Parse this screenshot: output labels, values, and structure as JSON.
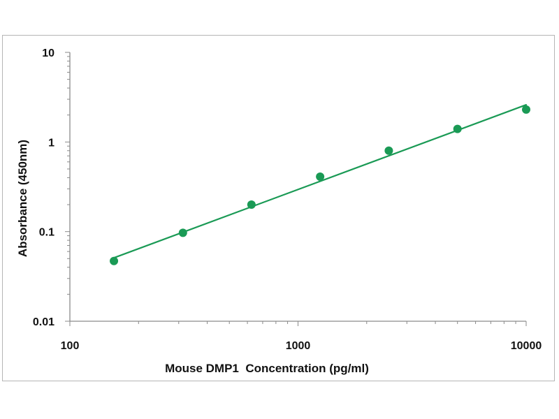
{
  "chart_data": {
    "type": "scatter",
    "title": "",
    "xlabel": "Mouse DMP1  Concentration (pg/ml)",
    "ylabel": "Absorbance (450nm)",
    "x_scale": "log",
    "y_scale": "log",
    "xlim": [
      100,
      10000
    ],
    "ylim": [
      0.01,
      10
    ],
    "x_ticks": [
      {
        "value": 100,
        "label": "100"
      },
      {
        "value": 1000,
        "label": "1000"
      },
      {
        "value": 10000,
        "label": "10000"
      }
    ],
    "y_ticks": [
      {
        "value": 10,
        "label": "10"
      },
      {
        "value": 1,
        "label": "1"
      },
      {
        "value": 0.1,
        "label": "0.1"
      },
      {
        "value": 0.01,
        "label": "0.01"
      }
    ],
    "grid": false,
    "legend": "none",
    "series": [
      {
        "points": [
          {
            "x": 156,
            "y": 0.047
          },
          {
            "x": 313,
            "y": 0.097
          },
          {
            "x": 625,
            "y": 0.2
          },
          {
            "x": 1250,
            "y": 0.41
          },
          {
            "x": 2500,
            "y": 0.8
          },
          {
            "x": 5000,
            "y": 1.4
          },
          {
            "x": 10000,
            "y": 2.3
          }
        ],
        "fit_line": {
          "x": [
            156,
            10000
          ],
          "y": [
            0.051,
            2.6
          ]
        },
        "color": "#1a9a55"
      }
    ]
  }
}
